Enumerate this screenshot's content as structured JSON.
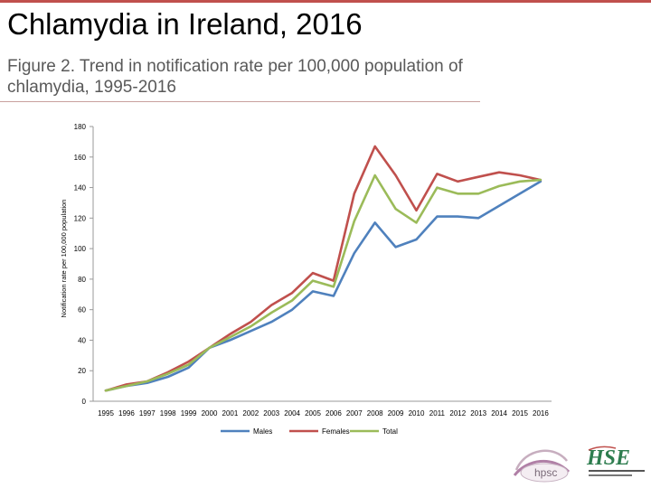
{
  "slide": {
    "title": "Chlamydia in Ireland, 2016",
    "subtitle": "Figure 2. Trend in notification rate per 100,000 population of chlamydia, 1995-2016",
    "accent_color": "#c0504d"
  },
  "logos": {
    "hpsc": "hpsc",
    "hse": "HSE"
  },
  "chart_data": {
    "type": "line",
    "title": "",
    "xlabel": "",
    "ylabel": "Notification rate per 100,000 population",
    "ylim": [
      0,
      180
    ],
    "yticks": [
      0,
      20,
      40,
      60,
      80,
      100,
      120,
      140,
      160,
      180
    ],
    "grid": false,
    "legend": "bottom",
    "x": [
      "1995",
      "1996",
      "1997",
      "1998",
      "1999",
      "2000",
      "2001",
      "2002",
      "2003",
      "2004",
      "2005",
      "2006",
      "2007",
      "2008",
      "2009",
      "2010",
      "2011",
      "2012",
      "2013",
      "2014",
      "2015",
      "2016"
    ],
    "series": [
      {
        "name": "Males",
        "color": "#4f81bd",
        "values": [
          7,
          10,
          12,
          16,
          22,
          35,
          40,
          46,
          52,
          60,
          72,
          69,
          97,
          117,
          101,
          106,
          121,
          121,
          120,
          128,
          136,
          144
        ]
      },
      {
        "name": "Females",
        "color": "#c0504d",
        "values": [
          7,
          11,
          13,
          19,
          26,
          35,
          44,
          52,
          63,
          71,
          84,
          79,
          136,
          167,
          148,
          125,
          149,
          144,
          147,
          150,
          148,
          145
        ]
      },
      {
        "name": "Total",
        "color": "#9bbb59",
        "values": [
          7,
          10,
          13,
          18,
          24,
          35,
          42,
          49,
          58,
          66,
          79,
          75,
          118,
          148,
          126,
          117,
          140,
          136,
          136,
          141,
          144,
          145
        ]
      }
    ]
  }
}
